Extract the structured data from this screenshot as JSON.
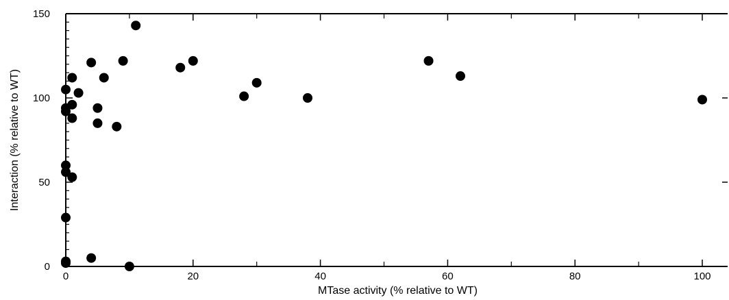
{
  "chart_data": {
    "type": "scatter",
    "title": "",
    "xlabel": "MTase activity (% relative to WT)",
    "ylabel": "Interaction (% relative to WT)",
    "xlim": [
      0,
      104
    ],
    "ylim": [
      0,
      150
    ],
    "x_ticks": [
      "0",
      "20",
      "40",
      "60",
      "80",
      "100"
    ],
    "y_ticks": [
      "0",
      "50",
      "100",
      "150"
    ],
    "grid": false,
    "legend": "none",
    "marker_color": "#000000",
    "points": [
      {
        "x": 0,
        "y": 105
      },
      {
        "x": 0,
        "y": 94
      },
      {
        "x": 0,
        "y": 92
      },
      {
        "x": 0,
        "y": 60
      },
      {
        "x": 0,
        "y": 56
      },
      {
        "x": 0,
        "y": 29
      },
      {
        "x": 0,
        "y": 3
      },
      {
        "x": 0,
        "y": 2
      },
      {
        "x": 1,
        "y": 112
      },
      {
        "x": 1,
        "y": 96
      },
      {
        "x": 1,
        "y": 88
      },
      {
        "x": 1,
        "y": 53
      },
      {
        "x": 2,
        "y": 103
      },
      {
        "x": 4,
        "y": 121
      },
      {
        "x": 4,
        "y": 5
      },
      {
        "x": 5,
        "y": 94
      },
      {
        "x": 5,
        "y": 85
      },
      {
        "x": 6,
        "y": 112
      },
      {
        "x": 8,
        "y": 83
      },
      {
        "x": 9,
        "y": 122
      },
      {
        "x": 10,
        "y": 0
      },
      {
        "x": 11,
        "y": 143
      },
      {
        "x": 18,
        "y": 118
      },
      {
        "x": 20,
        "y": 122
      },
      {
        "x": 28,
        "y": 101
      },
      {
        "x": 30,
        "y": 109
      },
      {
        "x": 38,
        "y": 100
      },
      {
        "x": 57,
        "y": 122
      },
      {
        "x": 62,
        "y": 113
      },
      {
        "x": 100,
        "y": 99
      }
    ]
  }
}
